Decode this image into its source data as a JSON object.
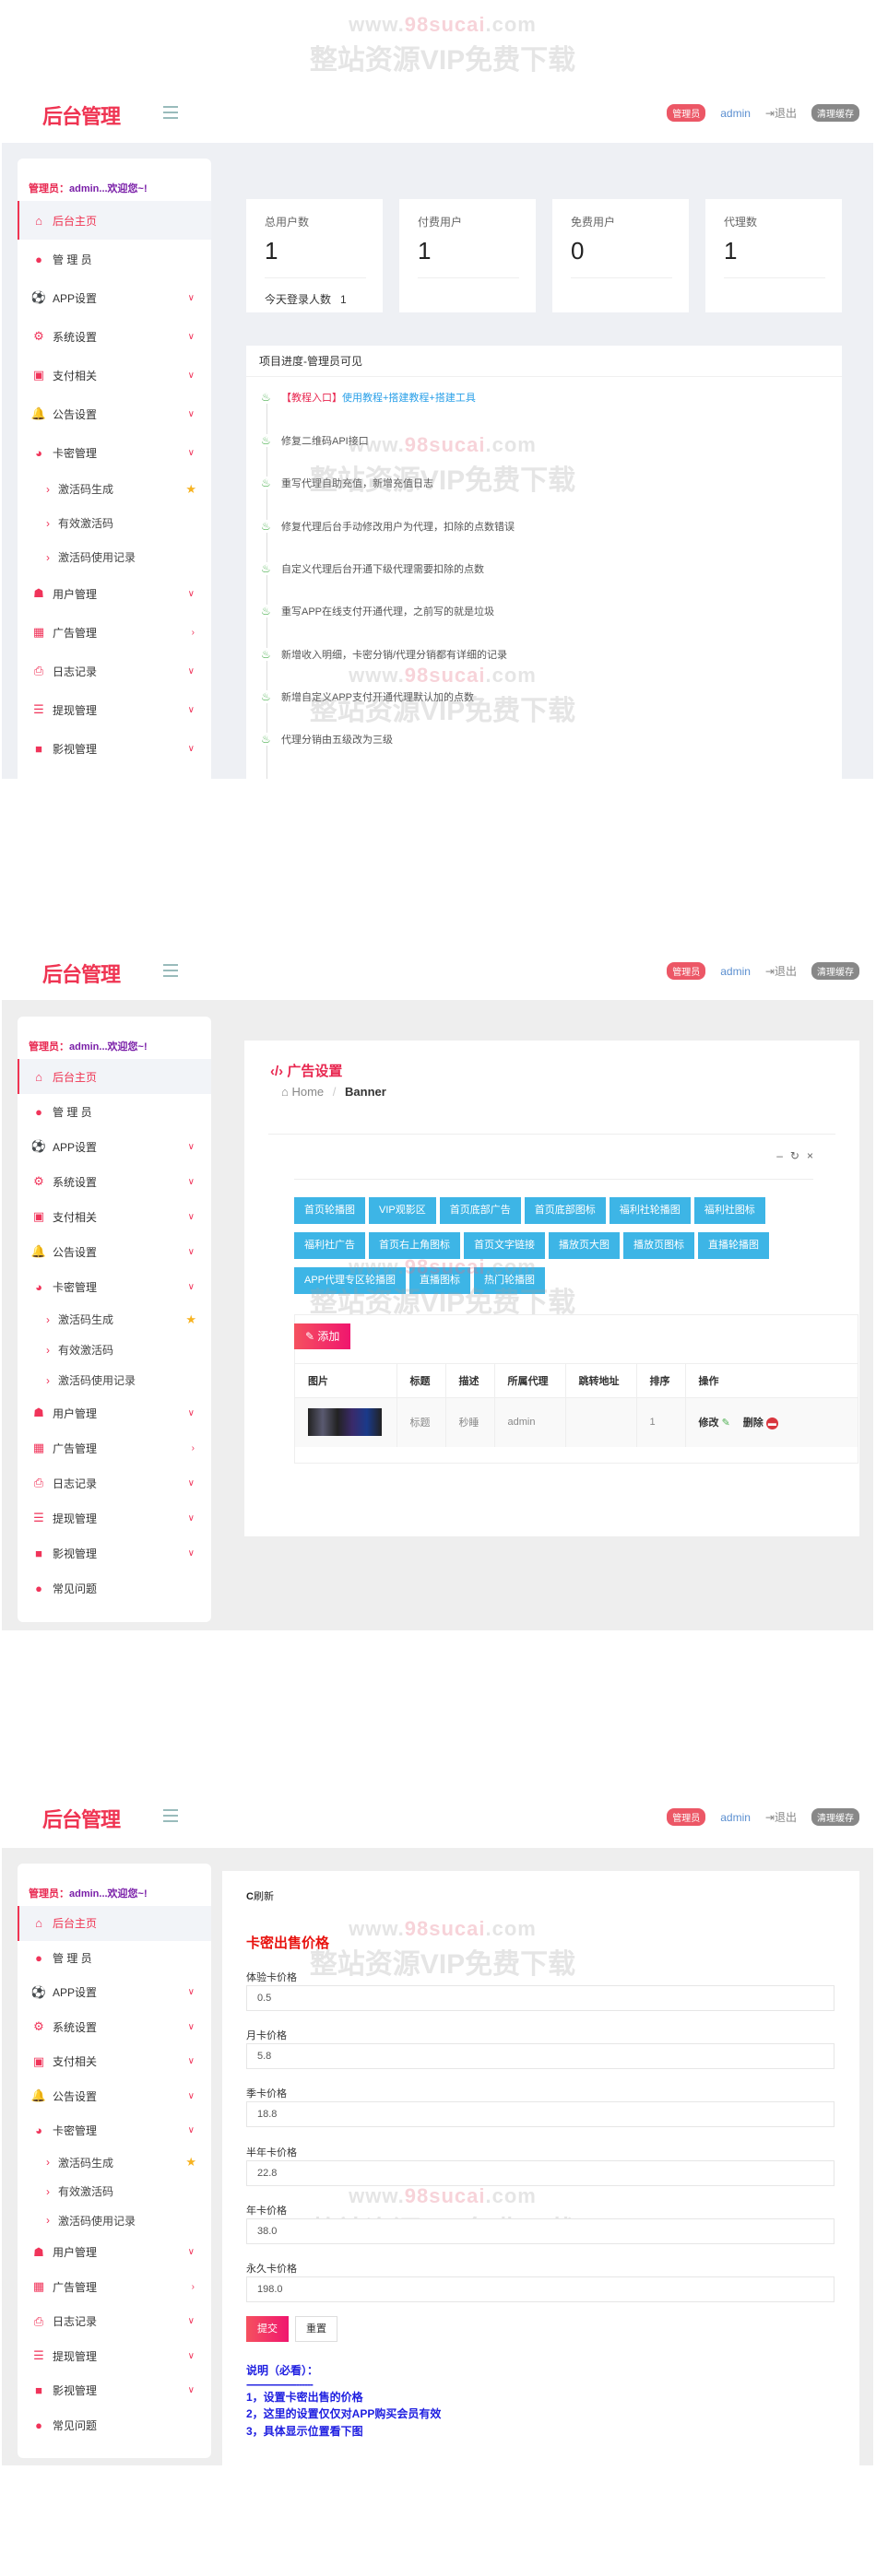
{
  "header": {
    "logo": "后台管理",
    "role_badge": "管理员",
    "user": "admin",
    "logout": "退出",
    "clear_cache": "清理缓存"
  },
  "sidebar": {
    "who_label": "管理员：",
    "who_name": "admin...欢迎您~!",
    "items": [
      {
        "label": "后台主页",
        "icon": "home-icon",
        "glyph": "⌂",
        "active": true
      },
      {
        "label": "管 理 员",
        "icon": "user-icon",
        "glyph": "●"
      },
      {
        "label": "APP设置",
        "icon": "soccer-ball-icon",
        "glyph": "⚽",
        "chevron": "down"
      },
      {
        "label": "系统设置",
        "icon": "gears-icon",
        "glyph": "⚙",
        "chevron": "down"
      },
      {
        "label": "支付相关",
        "icon": "money-icon",
        "glyph": "▣",
        "chevron": "down"
      },
      {
        "label": "公告设置",
        "icon": "bell-icon",
        "glyph": "🔔",
        "chevron": "down"
      },
      {
        "label": "卡密管理",
        "icon": "globe-icon",
        "glyph": "◕",
        "chevron": "down"
      },
      {
        "label": "激活码生成",
        "sub": true,
        "star": true
      },
      {
        "label": "有效激活码",
        "sub": true
      },
      {
        "label": "激活码使用记录",
        "sub": true
      },
      {
        "label": "用户管理",
        "icon": "users-icon",
        "glyph": "☗",
        "chevron": "down"
      },
      {
        "label": "广告管理",
        "icon": "grid-icon",
        "glyph": "▦",
        "chevron": "right"
      },
      {
        "label": "日志记录",
        "icon": "print-icon",
        "glyph": "⎙",
        "chevron": "down"
      },
      {
        "label": "提现管理",
        "icon": "bars-icon",
        "glyph": "☰",
        "chevron": "down"
      },
      {
        "label": "影视管理",
        "icon": "video-camera-icon",
        "glyph": "■",
        "chevron": "down"
      },
      {
        "label": "常见问题",
        "icon": "user-icon",
        "glyph": "●"
      }
    ]
  },
  "watermark": {
    "url_a": "www.",
    "url_b": "98sucai",
    "url_c": ".com",
    "text": "整站资源VIP免费下载"
  },
  "dashboard": {
    "stats": [
      {
        "label": "总用户数",
        "value": "1"
      },
      {
        "label": "付费用户",
        "value": "1"
      },
      {
        "label": "免费用户",
        "value": "0"
      },
      {
        "label": "代理数",
        "value": "1"
      }
    ],
    "today_label": "今天登录人数",
    "today_value": "1",
    "progress_title": "项目进度-管理员可见",
    "tutorial_tag": "【教程入口】",
    "tutorial_link": "使用教程+搭建教程+搭建工具",
    "timeline": [
      "修复二维码API接口",
      "重写代理自助充值，新增充值日志",
      "修复代理后台手动修改用户为代理，扣除的点数错误",
      "自定义代理后台开通下级代理需要扣除的点数",
      "重写APP在线支付开通代理，之前写的就是垃圾",
      "新增收入明细，卡密分销/代理分销都有详细的记录",
      "新增自定义APP支付开通代理默认加的点数",
      "代理分销由五级改为三级"
    ]
  },
  "ads": {
    "title": "广告设置",
    "crumb_home": "Home",
    "crumb_current": "Banner",
    "tabs_rows": [
      [
        "首页轮播图",
        "VIP观影区",
        "首页底部广告",
        "首页底部图标",
        "福利社轮播图",
        "福利社图标"
      ],
      [
        "福利社广告",
        "首页右上角图标",
        "首页文字链接",
        "播放页大图",
        "播放页图标",
        "直播轮播图"
      ],
      [
        "APP代理专区轮播图",
        "直播图标",
        "热门轮播图"
      ]
    ],
    "add_label": "添加",
    "columns": [
      "图片",
      "标题",
      "描述",
      "所属代理",
      "跳转地址",
      "排序",
      "操作"
    ],
    "row": {
      "title": "标题",
      "desc": "秒睡",
      "agent": "admin",
      "url": "",
      "order": "1",
      "edit": "修改",
      "delete": "删除"
    }
  },
  "pricing": {
    "refresh": "刷新",
    "title": "卡密出售价格",
    "fields": [
      {
        "label": "体验卡价格",
        "value": "0.5"
      },
      {
        "label": "月卡价格",
        "value": "5.8"
      },
      {
        "label": "季卡价格",
        "value": "18.8"
      },
      {
        "label": "半年卡价格",
        "value": "22.8"
      },
      {
        "label": "年卡价格",
        "value": "38.0"
      },
      {
        "label": "永久卡价格",
        "value": "198.0"
      }
    ],
    "submit": "提交",
    "reset": "重置",
    "note_title": "说明（必看）：",
    "note_dashes": "------------------------",
    "notes": [
      "1，设置卡密出售的价格",
      "2，这里的设置仅仅对APP购买会员有效",
      "3，具体显示位置看下图"
    ]
  },
  "colors": {
    "accent": "#ef3452",
    "tab_blue": "#3db5e6",
    "note_blue": "#1e1ee0",
    "bg_gray": "#eef0f4"
  }
}
